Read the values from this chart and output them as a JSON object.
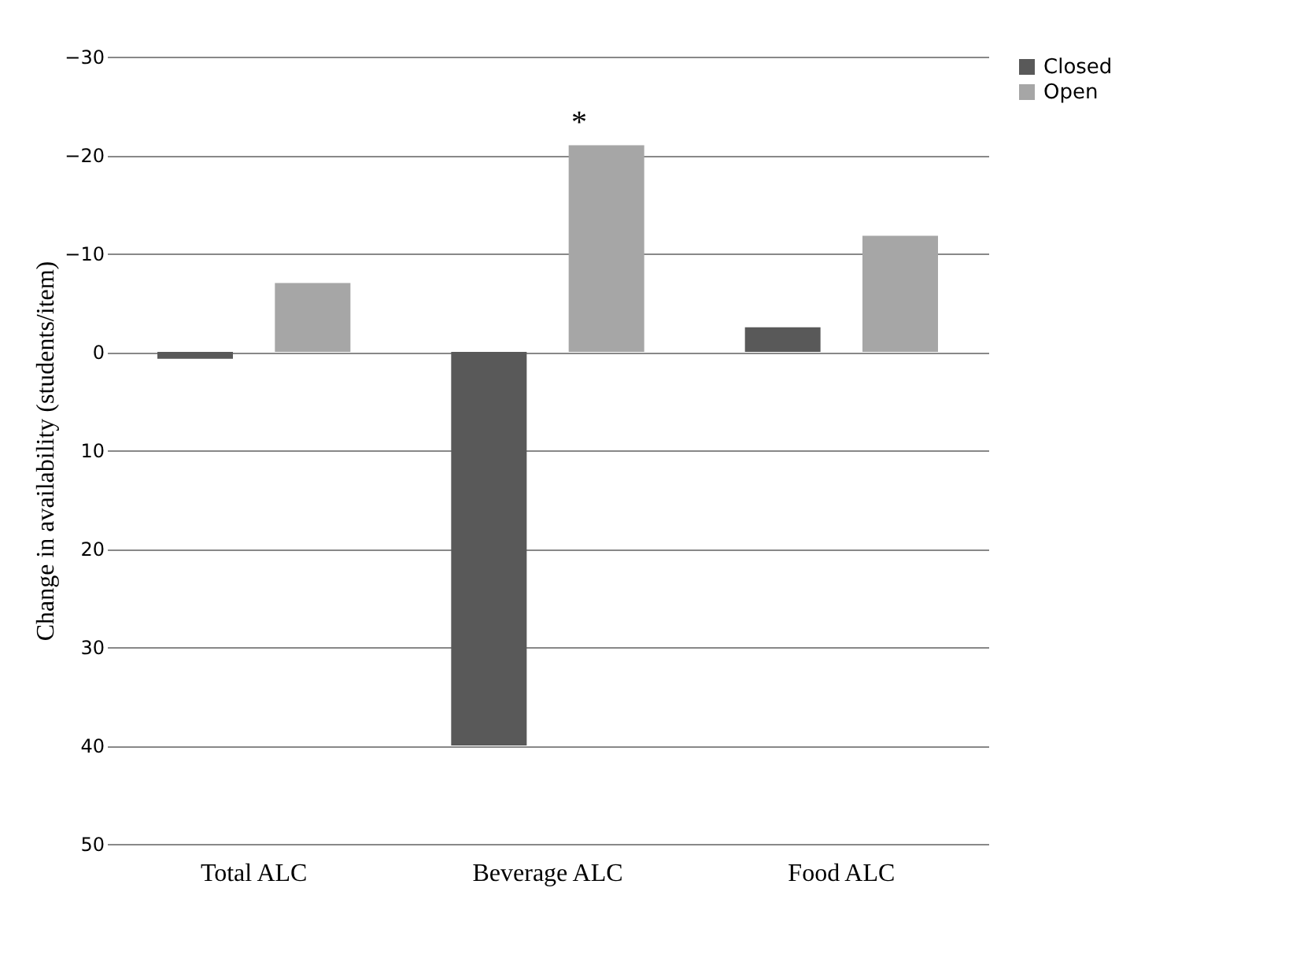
{
  "chart_data": {
    "type": "bar",
    "ylabel": "Change in availability (students/item)",
    "categories": [
      "Total ALC",
      "Beverage ALC",
      "Food ALC"
    ],
    "series": [
      {
        "name": "Closed",
        "color": "#595959",
        "values": [
          0.7,
          40,
          -2.5
        ]
      },
      {
        "name": "Open",
        "color": "#a6a6a6",
        "values": [
          -7,
          -21,
          -11.8
        ]
      }
    ],
    "ylim": [
      50,
      -30
    ],
    "yticks": [
      -30,
      -20,
      -10,
      0,
      10,
      20,
      30,
      40,
      50
    ],
    "grid": "y",
    "legend": "right",
    "annotations": [
      "*"
    ]
  }
}
